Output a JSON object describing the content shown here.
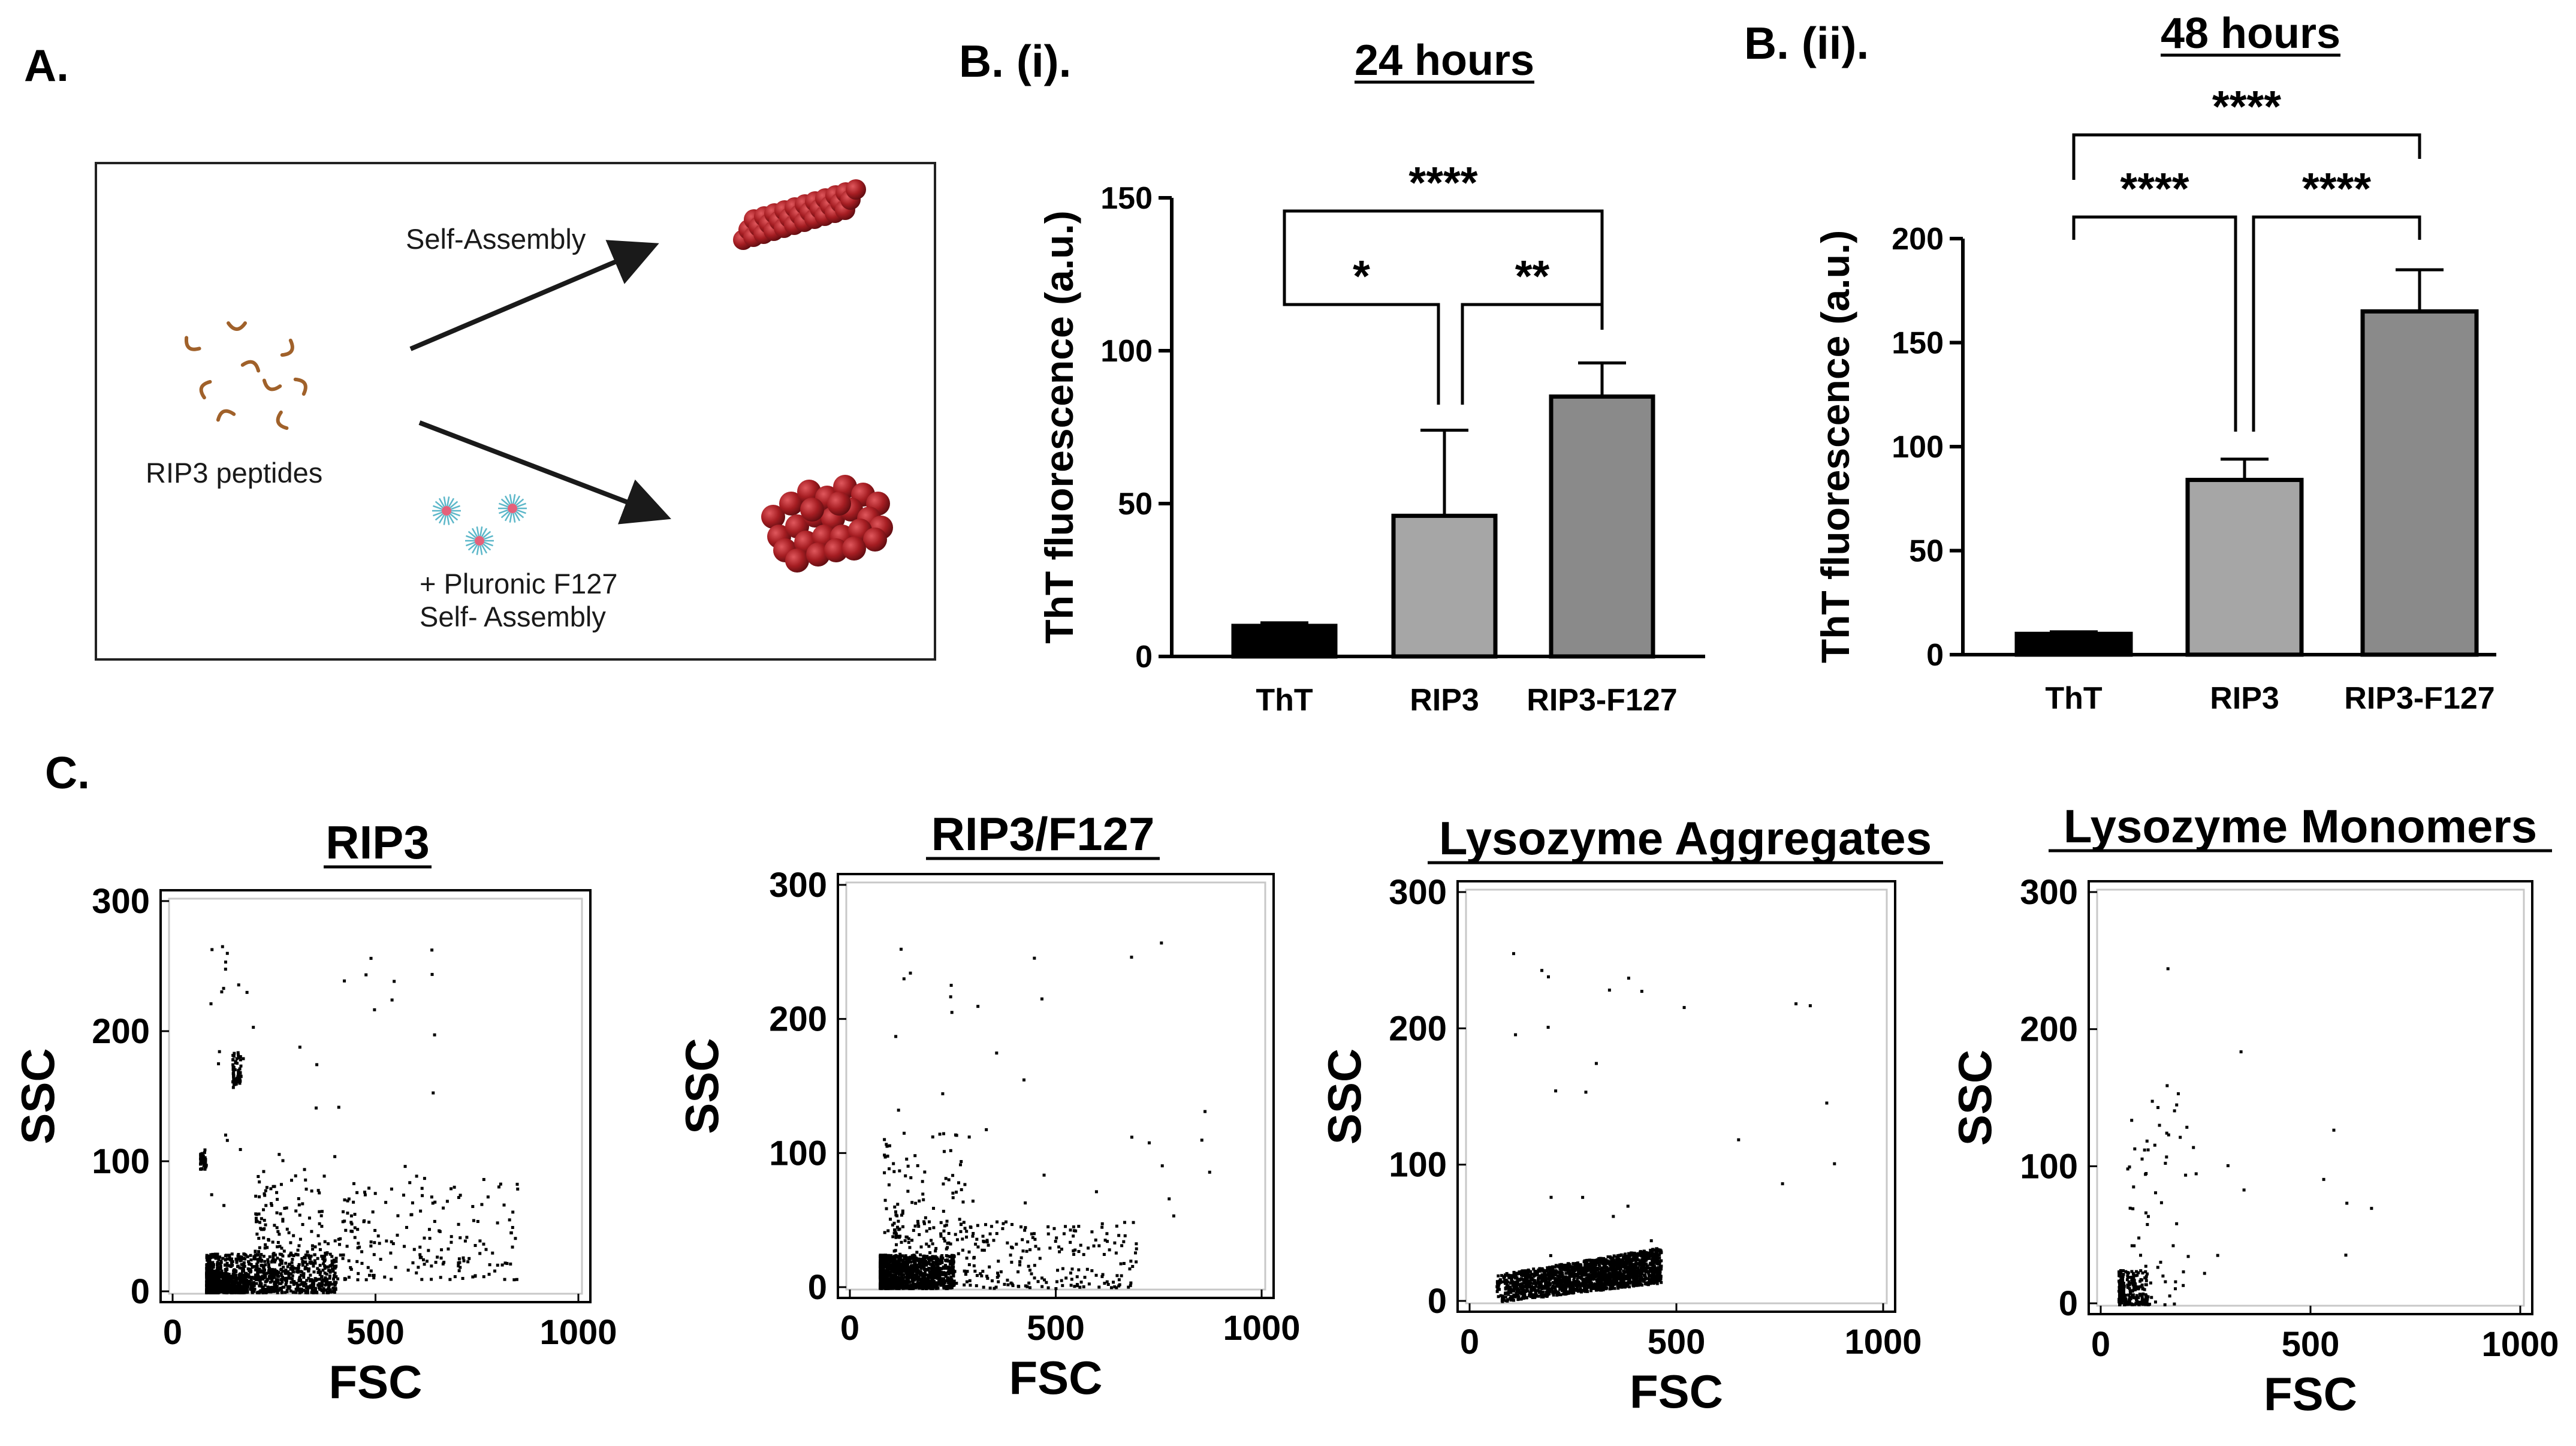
{
  "panels": {
    "a": {
      "letter": "A."
    },
    "b1": {
      "letter": "B. (i)."
    },
    "b2": {
      "letter": "B. (ii)."
    },
    "c": {
      "letter": "C."
    }
  },
  "schematic": {
    "self_assembly_label": "Self-Assembly",
    "peptides_label": "RIP3 peptides",
    "pluronic_label_line1": "+ Pluronic F127",
    "pluronic_label_line2": "Self- Assembly"
  },
  "colors": {
    "ThT": "#000000",
    "RIP3": "#a6a6a6",
    "RIP3-F127": "#8a8a8a",
    "fibril": "#a51d22",
    "peptide": "#a0612a",
    "micelle": "#5cb7c9"
  },
  "chart_data": [
    {
      "type": "bar",
      "title": "24 hours",
      "xlabel": "",
      "ylabel": "ThT fluorescence (a.u.)",
      "ylim": [
        0,
        150
      ],
      "yticks": [
        0,
        50,
        100,
        150
      ],
      "categories": [
        "ThT",
        "RIP3",
        "RIP3-F127"
      ],
      "values": [
        10,
        46,
        85
      ],
      "errors": [
        1,
        28,
        11
      ],
      "significance": [
        {
          "from": "ThT",
          "to": "RIP3",
          "label": "*"
        },
        {
          "from": "RIP3",
          "to": "RIP3-F127",
          "label": "**"
        },
        {
          "from": "ThT",
          "to": "RIP3-F127",
          "label": "****"
        }
      ]
    },
    {
      "type": "bar",
      "title": "48 hours",
      "xlabel": "",
      "ylabel": "ThT fluorescence (a.u.)",
      "ylim": [
        0,
        200
      ],
      "yticks": [
        0,
        50,
        100,
        150,
        200
      ],
      "categories": [
        "ThT",
        "RIP3",
        "RIP3-F127"
      ],
      "values": [
        10,
        84,
        165
      ],
      "errors": [
        1,
        10,
        20
      ],
      "significance": [
        {
          "from": "ThT",
          "to": "RIP3",
          "label": "****"
        },
        {
          "from": "RIP3",
          "to": "RIP3-F127",
          "label": "****"
        },
        {
          "from": "ThT",
          "to": "RIP3-F127",
          "label": "****"
        }
      ]
    },
    {
      "type": "scatter",
      "title": "RIP3",
      "xlabel": "FSC",
      "ylabel": "SSC",
      "xlim": [
        0,
        1000
      ],
      "ylim": [
        0,
        300
      ],
      "xticks": [
        0,
        500,
        1000
      ],
      "yticks": [
        0,
        100,
        200,
        300
      ],
      "clusters": [
        {
          "x": [
            80,
            400
          ],
          "y": [
            0,
            30
          ],
          "n": 900
        },
        {
          "x": [
            80,
            180
          ],
          "y": [
            0,
            15
          ],
          "n": 500
        },
        {
          "x": [
            200,
            850
          ],
          "y": [
            10,
            90
          ],
          "n": 350
        },
        {
          "x": [
            145,
            165
          ],
          "y": [
            160,
            185
          ],
          "n": 60
        },
        {
          "x": [
            65,
            80
          ],
          "y": [
            95,
            110
          ],
          "n": 40
        },
        {
          "x": [
            90,
            700
          ],
          "y": [
            20,
            280
          ],
          "n": 60
        }
      ]
    },
    {
      "type": "scatter",
      "title": "RIP3/F127",
      "xlabel": "FSC",
      "ylabel": "SSC",
      "xlim": [
        0,
        1000
      ],
      "ylim": [
        0,
        300
      ],
      "xticks": [
        0,
        500,
        1000
      ],
      "yticks": [
        0,
        100,
        200,
        300
      ],
      "clusters": [
        {
          "x": [
            70,
            250
          ],
          "y": [
            0,
            25
          ],
          "n": 1100
        },
        {
          "x": [
            100,
            700
          ],
          "y": [
            0,
            50
          ],
          "n": 350
        },
        {
          "x": [
            80,
            300
          ],
          "y": [
            40,
            120
          ],
          "n": 80
        },
        {
          "x": [
            100,
            900
          ],
          "y": [
            30,
            280
          ],
          "n": 40
        }
      ]
    },
    {
      "type": "scatter",
      "title": "Lysozyme Aggregates",
      "xlabel": "FSC",
      "ylabel": "SSC",
      "xlim": [
        0,
        1000
      ],
      "ylim": [
        0,
        300
      ],
      "xticks": [
        0,
        500,
        1000
      ],
      "yticks": [
        0,
        100,
        200,
        300
      ],
      "clusters": [
        {
          "band": true,
          "x": [
            60,
            460
          ],
          "y0": [
            0,
            14
          ],
          "y1": [
            20,
            40
          ],
          "n": 1800
        },
        {
          "x": [
            100,
            900
          ],
          "y": [
            20,
            280
          ],
          "n": 25
        }
      ]
    },
    {
      "type": "scatter",
      "title": "Lysozyme Monomers",
      "xlabel": "FSC",
      "ylabel": "SSC",
      "xlim": [
        0,
        1000
      ],
      "ylim": [
        0,
        300
      ],
      "xticks": [
        0,
        500,
        1000
      ],
      "yticks": [
        0,
        100,
        200,
        300
      ],
      "clusters": [
        {
          "x": [
            40,
            110
          ],
          "y": [
            0,
            25
          ],
          "n": 220
        },
        {
          "x": [
            60,
            250
          ],
          "y": [
            0,
            150
          ],
          "n": 60
        },
        {
          "x": [
            150,
            800
          ],
          "y": [
            10,
            260
          ],
          "n": 15
        }
      ]
    }
  ]
}
